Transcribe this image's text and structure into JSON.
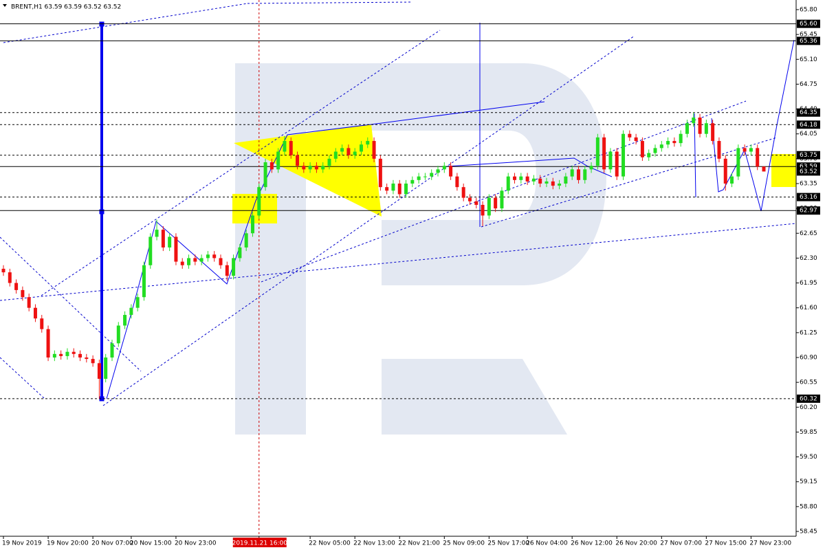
{
  "chart_data": {
    "type": "candlestick",
    "title": "BRENT,H1  63.59 63.59 63.52 63.52",
    "up_color": "#22dd22",
    "down_color": "#ee1111",
    "ylim": [
      58.45,
      65.8
    ],
    "yticks": [
      {
        "value": 65.8,
        "label": "65.80"
      },
      65.45,
      {
        "value": 65.1,
        "label": "65.10"
      },
      64.75,
      {
        "value": 64.4,
        "label": "64.40"
      },
      64.05,
      {
        "value": 63.7,
        "label": "63.70"
      },
      63.35,
      {
        "value": 63.0,
        "label": "63.00"
      },
      62.65,
      {
        "value": 62.3,
        "label": "62.30"
      },
      61.95,
      {
        "value": 61.6,
        "label": "61.60"
      },
      61.25,
      {
        "value": 60.9,
        "label": "60.90"
      },
      60.55,
      {
        "value": 60.2,
        "label": "60.20"
      },
      59.85,
      {
        "value": 59.5,
        "label": "59.50"
      },
      59.15,
      {
        "value": 58.8,
        "label": "58.80"
      },
      58.45
    ],
    "levels": [
      {
        "value": 65.6,
        "label": "65.60",
        "style": "solid"
      },
      {
        "value": 65.36,
        "style": "solid"
      },
      {
        "value": 64.35,
        "style": "dashed"
      },
      {
        "value": 64.18,
        "style": "dashed"
      },
      {
        "value": 63.75,
        "style": "dashed"
      },
      {
        "value": 63.59,
        "style": "solid"
      },
      {
        "value": 63.52,
        "style": "none"
      },
      {
        "value": 63.16,
        "style": "dashed"
      },
      {
        "value": 62.97,
        "style": "solid"
      },
      {
        "value": 60.32,
        "style": "dashed"
      }
    ],
    "highlight": "2019.11.21 16:00",
    "categories": [
      "19 Nov 2019",
      null,
      null,
      null,
      null,
      null,
      null,
      "19 Nov 20:00",
      null,
      null,
      null,
      null,
      null,
      null,
      "20 Nov 07:00",
      null,
      null,
      null,
      null,
      null,
      "20 Nov 15:00",
      null,
      null,
      null,
      null,
      null,
      null,
      "20 Nov 23:00",
      null,
      null,
      null,
      null,
      null,
      null,
      null,
      null,
      null,
      null,
      null,
      null,
      "2019.11.21 16:00",
      null,
      null,
      null,
      null,
      null,
      null,
      null,
      "22 Nov 05:00",
      null,
      null,
      null,
      null,
      null,
      null,
      "22 Nov 13:00",
      null,
      null,
      null,
      null,
      null,
      null,
      "22 Nov 21:00",
      null,
      null,
      null,
      null,
      null,
      null,
      "25 Nov 09:00",
      null,
      null,
      null,
      null,
      null,
      null,
      "25 Nov 17:00",
      null,
      null,
      null,
      null,
      null,
      "26 Nov 04:00",
      null,
      null,
      null,
      null,
      null,
      null,
      "26 Nov 12:00",
      null,
      null,
      null,
      null,
      null,
      null,
      "26 Nov 20:00",
      null,
      null,
      null,
      null,
      null,
      null,
      "27 Nov 07:00",
      null,
      null,
      null,
      null,
      null,
      null,
      "27 Nov 15:00",
      null,
      null,
      null,
      null,
      null,
      null,
      "27 Nov 23:00",
      null,
      null
    ],
    "open": [
      62.15,
      62.1,
      61.95,
      61.85,
      61.75,
      61.6,
      61.45,
      61.3,
      60.9,
      60.95,
      60.92,
      60.98,
      60.95,
      60.9,
      60.88,
      60.82,
      60.6,
      60.9,
      61.1,
      61.35,
      61.5,
      61.6,
      61.75,
      62.2,
      62.6,
      62.7,
      62.45,
      62.6,
      62.25,
      62.2,
      62.3,
      62.25,
      62.3,
      62.35,
      62.3,
      62.2,
      62.05,
      62.3,
      62.45,
      62.65,
      62.9,
      63.3,
      63.65,
      63.55,
      63.8,
      63.95,
      63.75,
      63.6,
      63.55,
      63.6,
      63.55,
      63.6,
      63.7,
      63.8,
      63.85,
      63.75,
      63.8,
      63.9,
      63.95,
      63.7,
      63.3,
      63.25,
      63.35,
      63.2,
      63.35,
      63.4,
      63.45,
      63.45,
      63.5,
      63.55,
      63.6,
      63.45,
      63.3,
      63.15,
      63.1,
      63.05,
      62.9,
      63.15,
      63.0,
      63.25,
      63.45,
      63.4,
      63.45,
      63.38,
      63.42,
      63.35,
      63.38,
      63.32,
      63.35,
      63.45,
      63.55,
      63.4,
      63.55,
      63.6,
      64.0,
      63.55,
      63.8,
      63.45,
      64.05,
      64.0,
      63.95,
      63.72,
      63.78,
      63.85,
      63.9,
      63.95,
      63.92,
      64.05,
      64.2,
      64.28,
      64.05,
      64.2,
      63.95,
      63.7,
      63.35,
      63.45,
      63.85,
      63.8,
      63.85,
      63.59
    ],
    "high": [
      62.2,
      62.15,
      62.0,
      61.9,
      61.8,
      61.65,
      61.5,
      61.35,
      61.0,
      61.0,
      61.03,
      61.03,
      61.0,
      60.95,
      60.93,
      60.87,
      60.95,
      61.15,
      61.4,
      61.55,
      61.65,
      61.8,
      62.25,
      62.65,
      62.84,
      62.75,
      62.65,
      62.65,
      62.3,
      62.35,
      62.35,
      62.35,
      62.4,
      62.4,
      62.35,
      62.25,
      62.35,
      62.5,
      62.7,
      62.95,
      63.35,
      63.7,
      63.7,
      63.85,
      64.02,
      64.0,
      63.8,
      63.65,
      63.65,
      63.65,
      63.65,
      63.75,
      63.85,
      63.9,
      63.9,
      63.85,
      63.95,
      64.0,
      64.0,
      63.75,
      63.35,
      63.4,
      63.4,
      63.4,
      63.45,
      63.5,
      63.5,
      63.55,
      63.6,
      63.65,
      63.65,
      63.5,
      63.35,
      63.2,
      63.15,
      63.1,
      63.2,
      63.2,
      63.3,
      63.5,
      63.5,
      63.5,
      63.5,
      63.47,
      63.47,
      63.43,
      63.43,
      63.4,
      63.5,
      63.6,
      63.6,
      63.6,
      63.65,
      64.05,
      64.05,
      63.85,
      63.85,
      64.1,
      64.1,
      64.05,
      64.0,
      63.83,
      63.9,
      63.95,
      64.0,
      64.0,
      64.1,
      64.25,
      64.35,
      64.33,
      64.25,
      64.25,
      64.0,
      63.75,
      63.5,
      63.9,
      63.9,
      63.9,
      63.9,
      63.59
    ],
    "low": [
      62.05,
      61.9,
      61.8,
      61.7,
      61.55,
      61.4,
      61.25,
      60.85,
      60.85,
      60.87,
      60.87,
      60.9,
      60.85,
      60.83,
      60.77,
      60.32,
      60.55,
      60.85,
      61.05,
      61.3,
      61.45,
      61.55,
      61.7,
      62.15,
      62.55,
      62.4,
      62.4,
      62.2,
      62.15,
      62.15,
      62.2,
      62.2,
      62.25,
      62.25,
      62.15,
      61.98,
      62.0,
      62.25,
      62.4,
      62.6,
      62.85,
      63.25,
      63.5,
      63.5,
      63.75,
      63.7,
      63.55,
      63.5,
      63.5,
      63.5,
      63.5,
      63.55,
      63.65,
      63.75,
      63.7,
      63.7,
      63.75,
      63.85,
      63.65,
      63.25,
      63.2,
      63.2,
      63.15,
      63.15,
      63.3,
      63.35,
      63.4,
      63.4,
      63.45,
      63.5,
      63.4,
      63.25,
      63.1,
      63.05,
      63.0,
      62.75,
      62.85,
      62.95,
      62.95,
      63.2,
      63.35,
      63.35,
      63.33,
      63.33,
      63.3,
      63.3,
      63.27,
      63.27,
      63.3,
      63.4,
      63.35,
      63.35,
      63.5,
      63.55,
      63.5,
      63.5,
      63.4,
      63.4,
      63.95,
      63.9,
      63.67,
      63.67,
      63.73,
      63.8,
      63.85,
      63.87,
      63.87,
      64.0,
      64.15,
      64.0,
      64.0,
      63.9,
      63.65,
      63.25,
      63.3,
      63.4,
      63.75,
      63.75,
      63.54,
      63.52
    ],
    "close": [
      62.1,
      61.95,
      61.85,
      61.75,
      61.6,
      61.45,
      61.3,
      60.9,
      60.95,
      60.92,
      60.98,
      60.95,
      60.9,
      60.88,
      60.82,
      60.6,
      60.9,
      61.1,
      61.35,
      61.5,
      61.6,
      61.75,
      62.2,
      62.6,
      62.7,
      62.45,
      62.6,
      62.25,
      62.2,
      62.3,
      62.25,
      62.3,
      62.35,
      62.3,
      62.2,
      62.05,
      62.3,
      62.45,
      62.65,
      62.9,
      63.3,
      63.65,
      63.55,
      63.8,
      63.95,
      63.75,
      63.6,
      63.55,
      63.6,
      63.55,
      63.6,
      63.7,
      63.8,
      63.85,
      63.75,
      63.8,
      63.9,
      63.95,
      63.7,
      63.3,
      63.25,
      63.35,
      63.2,
      63.35,
      63.4,
      63.45,
      63.45,
      63.5,
      63.55,
      63.6,
      63.45,
      63.3,
      63.15,
      63.1,
      63.05,
      62.9,
      63.15,
      63.0,
      63.25,
      63.45,
      63.4,
      63.45,
      63.38,
      63.42,
      63.35,
      63.38,
      63.32,
      63.35,
      63.45,
      63.55,
      63.4,
      63.55,
      63.6,
      64.0,
      63.55,
      63.8,
      63.45,
      64.05,
      64.0,
      63.95,
      63.72,
      63.78,
      63.85,
      63.9,
      63.95,
      63.92,
      64.05,
      64.2,
      64.28,
      64.05,
      64.2,
      63.95,
      63.7,
      63.35,
      63.45,
      63.85,
      63.8,
      63.85,
      63.59,
      63.52
    ]
  }
}
